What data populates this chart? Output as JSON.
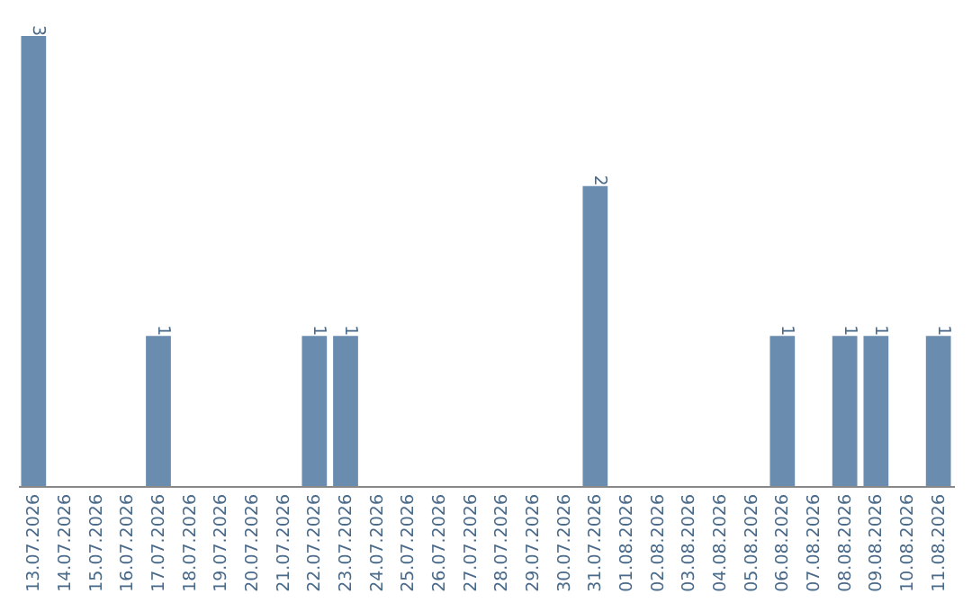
{
  "chart_data": {
    "type": "bar",
    "categories": [
      "13.07.2026",
      "14.07.2026",
      "15.07.2026",
      "16.07.2026",
      "17.07.2026",
      "18.07.2026",
      "19.07.2026",
      "20.07.2026",
      "21.07.2026",
      "22.07.2026",
      "23.07.2026",
      "24.07.2026",
      "25.07.2026",
      "26.07.2026",
      "27.07.2026",
      "28.07.2026",
      "29.07.2026",
      "30.07.2026",
      "31.07.2026",
      "01.08.2026",
      "02.08.2026",
      "03.08.2026",
      "04.08.2026",
      "05.08.2026",
      "06.08.2026",
      "07.08.2026",
      "08.08.2026",
      "09.08.2026",
      "10.08.2026",
      "11.08.2026"
    ],
    "values": [
      3,
      0,
      0,
      0,
      1,
      0,
      0,
      0,
      0,
      1,
      1,
      0,
      0,
      0,
      0,
      0,
      0,
      0,
      2,
      0,
      0,
      0,
      0,
      0,
      1,
      0,
      1,
      1,
      0,
      1
    ],
    "value_labels": [
      "3",
      null,
      null,
      null,
      "1",
      null,
      null,
      null,
      null,
      "1",
      "1",
      null,
      null,
      null,
      null,
      null,
      null,
      null,
      "2",
      null,
      null,
      null,
      null,
      null,
      "1",
      null,
      "1",
      "1",
      null,
      "1"
    ],
    "color": "#6a8caf",
    "ylim": [
      0,
      3
    ],
    "tick_labels": "x"
  }
}
